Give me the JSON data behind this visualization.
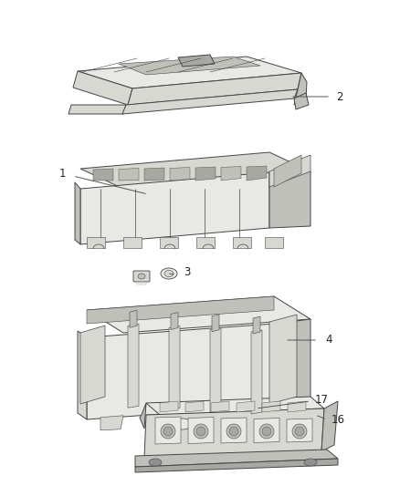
{
  "background_color": "#ffffff",
  "fig_width": 4.38,
  "fig_height": 5.33,
  "dpi": 100,
  "line_color": "#555555",
  "edge_color": "#444444",
  "face_light": "#e8e8e4",
  "face_mid": "#d8d8d2",
  "face_dark": "#c0c0ba",
  "face_darker": "#a8a8a2",
  "text_color": "#222222",
  "font_size": 8.5,
  "lw": 0.7
}
